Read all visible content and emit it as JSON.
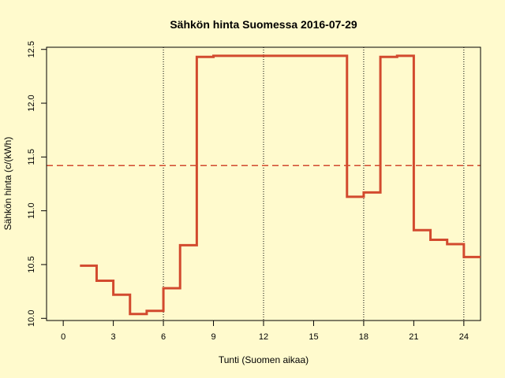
{
  "chart_data": {
    "type": "line",
    "step": true,
    "title": "Sähkön hinta Suomessa 2016-07-29",
    "xlabel": "Tunti (Suomen aikaa)",
    "ylabel": "Sähkön hinta (c/(kWh)",
    "xlim": [
      -1,
      25
    ],
    "ylim": [
      9.98,
      12.52
    ],
    "xticks": [
      0,
      3,
      6,
      9,
      12,
      15,
      18,
      21,
      24
    ],
    "yticks": [
      10.0,
      10.5,
      11.0,
      11.5,
      12.0,
      12.5
    ],
    "ytick_labels": [
      "10.0",
      "10.5",
      "11.0",
      "11.5",
      "12.0",
      "12.5"
    ],
    "vertical_gridlines": [
      6,
      12,
      18,
      24
    ],
    "average_line": 11.42,
    "line_color": "#D24A2E",
    "series": [
      {
        "x": [
          1,
          2,
          3,
          4,
          5,
          6,
          7,
          8,
          9,
          10,
          11,
          12,
          13,
          14,
          15,
          16,
          17,
          18,
          19,
          20,
          21,
          22,
          23,
          24
        ],
        "values": [
          10.49,
          10.35,
          10.22,
          10.04,
          10.07,
          10.28,
          10.68,
          12.43,
          12.44,
          12.44,
          12.44,
          12.44,
          12.44,
          12.44,
          12.44,
          12.44,
          11.13,
          11.17,
          12.43,
          12.44,
          10.82,
          10.73,
          10.69,
          10.57
        ]
      }
    ]
  }
}
